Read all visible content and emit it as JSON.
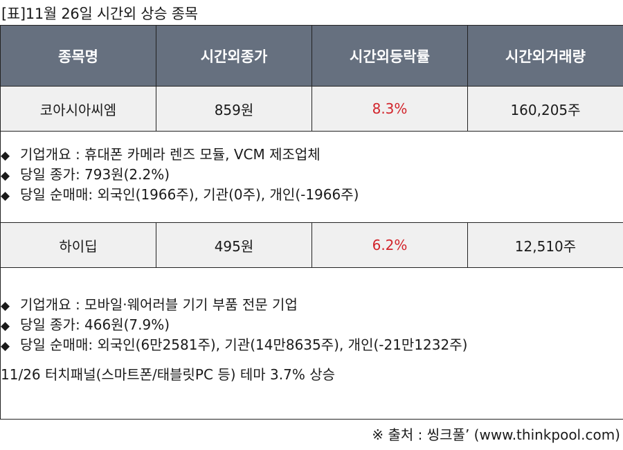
{
  "title": "[표]11월 26일 시간외 상승 종목",
  "headers": [
    "종목명",
    "시간외종가",
    "시간외등락률",
    "시간외거래량"
  ],
  "rows": [
    {
      "name": "코아시아씨엠",
      "price": "859원",
      "rate": "8.3%",
      "volume": "160,205주",
      "info": [
        "기업개요 : 휴대폰 카메라 렌즈 모듈, VCM 제조업체",
        "당일 종가: 793원(2.2%)",
        "당일 순매매: 외국인(1966주), 기관(0주), 개인(-1966주)"
      ]
    },
    {
      "name": "하이딥",
      "price": "495원",
      "rate": "6.2%",
      "volume": "12,510주",
      "info": [
        "기업개요 : 모바일·웨어러블 기기 부품 전문 기업",
        "당일 종가: 466원(7.9%)",
        "당일 순매매: 외국인(6만2581주), 기관(14만8635주), 개인(-21만1232주)"
      ],
      "note": "11/26 터치패널(스마트폰/태블릿PC 등) 테마 3.7% 상승"
    }
  ],
  "bullet": "◆",
  "source": "※ 출처 : 씽크풀’ (www.thinkpool.com)",
  "colors": {
    "header_bg": "#66707f",
    "row_bg": "#f0f0f0",
    "rate_red": "#d2232a"
  }
}
